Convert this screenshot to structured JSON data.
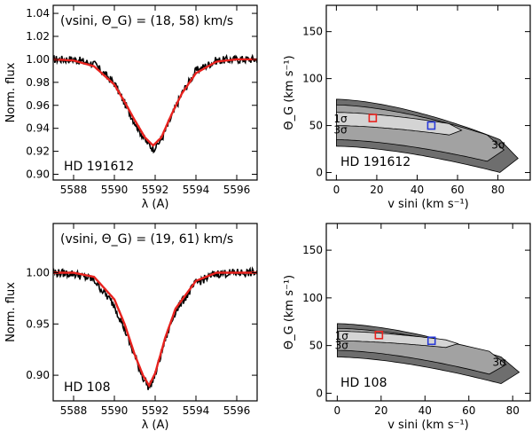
{
  "chart_data": [
    {
      "type": "line",
      "panel": "spectrum",
      "star_label": "HD 191612",
      "annotation": "(vsini, Θ_G) = (18, 58) km/s",
      "xlabel": "λ (A)",
      "ylabel": "Norm. flux",
      "xlim": [
        5587.0,
        5597.0
      ],
      "ylim": [
        0.895,
        1.047
      ],
      "xticks": [
        5588,
        5590,
        5592,
        5594,
        5596
      ],
      "xtick_labels": [
        "5588",
        "5590",
        "5592",
        "5594",
        "5596"
      ],
      "yticks": [
        0.9,
        0.92,
        0.94,
        0.96,
        0.98,
        1.0,
        1.02,
        1.04
      ],
      "ytick_labels": [
        "0.90",
        "0.92",
        "0.94",
        "0.96",
        "0.98",
        "1.00",
        "1.02",
        "1.04"
      ],
      "line_center": 5591.9,
      "line_depth": 0.078,
      "observed_sigma": 1.0,
      "model_sigma": 1.05,
      "series": [
        {
          "color": "#000000",
          "role": "observed",
          "x": [
            5587.0,
            5588.0,
            5589.0,
            5590.0,
            5590.5,
            5591.0,
            5591.5,
            5591.9,
            5592.3,
            5592.8,
            5593.3,
            5594.0,
            5595.0,
            5596.0,
            5597.0
          ],
          "values": [
            1.0,
            1.0,
            0.996,
            0.979,
            0.962,
            0.945,
            0.93,
            0.922,
            0.93,
            0.95,
            0.97,
            0.99,
            0.999,
            1.0,
            1.0
          ]
        },
        {
          "color": "#e8221e",
          "role": "model",
          "x": [
            5587.0,
            5588.0,
            5589.0,
            5590.0,
            5590.5,
            5591.0,
            5591.5,
            5591.9,
            5592.3,
            5592.8,
            5593.3,
            5594.0,
            5595.0,
            5596.0,
            5597.0
          ],
          "values": [
            1.0,
            0.999,
            0.994,
            0.978,
            0.963,
            0.947,
            0.932,
            0.925,
            0.932,
            0.952,
            0.97,
            0.988,
            0.998,
            1.0,
            1.0
          ]
        }
      ]
    },
    {
      "type": "contour",
      "panel": "chi2-map",
      "star_label": "HD 191612",
      "xlabel": "v sini (km s⁻¹)",
      "ylabel": "Θ_G (km s⁻¹)",
      "xlim": [
        -5,
        96
      ],
      "ylim": [
        -8,
        178
      ],
      "xticks": [
        0,
        20,
        40,
        60,
        80
      ],
      "xtick_labels": [
        "0",
        "20",
        "40",
        "60",
        "80"
      ],
      "yticks": [
        0,
        50,
        100,
        150
      ],
      "ytick_labels": [
        "0",
        "50",
        "100",
        "150"
      ],
      "contour_labels": [
        "1σ",
        "3σ",
        "3σ"
      ],
      "contour_colors": {
        "outer": "#6e6e6e",
        "middle": "#a2a2a2",
        "inner": "#d4d4d4"
      },
      "contour_levels": [
        {
          "level": "outer",
          "upper_theta0": 78,
          "upper_theta_end": 35,
          "lower_theta0": 28,
          "lower_theta_end": 0,
          "vmax": 90,
          "tip_theta": 15
        },
        {
          "level": "middle",
          "upper_theta0": 72,
          "upper_theta_end": 40,
          "lower_theta0": 35,
          "lower_theta_end": 12,
          "vmax": 83,
          "tip_theta": 24
        },
        {
          "level": "inner",
          "upper_theta0": 64,
          "upper_theta_end": 52,
          "lower_theta0": 50,
          "lower_theta_end": 40,
          "vmax": 62,
          "tip_theta": 45
        }
      ],
      "markers": [
        {
          "color": "#e8221e",
          "x": 18,
          "y": 58
        },
        {
          "color": "#2a3bd8",
          "x": 47,
          "y": 50
        }
      ]
    },
    {
      "type": "line",
      "panel": "spectrum",
      "star_label": "HD 108",
      "annotation": "(vsini, Θ_G) = (19, 61) km/s",
      "xlabel": "λ (A)",
      "ylabel": "Norm. flux",
      "xlim": [
        5587.0,
        5597.0
      ],
      "ylim": [
        0.875,
        1.048
      ],
      "xticks": [
        5588,
        5590,
        5592,
        5594,
        5596
      ],
      "xtick_labels": [
        "5588",
        "5590",
        "5592",
        "5594",
        "5596"
      ],
      "yticks": [
        0.9,
        0.95,
        1.0
      ],
      "ytick_labels": [
        "0.90",
        "0.95",
        "1.00"
      ],
      "line_center": 5591.7,
      "line_depth": 0.112,
      "observed_sigma": 0.95,
      "model_sigma": 0.9,
      "series": [
        {
          "color": "#000000",
          "role": "observed",
          "x": [
            5587.0,
            5588.0,
            5589.0,
            5590.0,
            5590.5,
            5591.0,
            5591.4,
            5591.7,
            5592.0,
            5592.5,
            5593.0,
            5594.0,
            5595.0,
            5596.0,
            5597.0
          ],
          "values": [
            1.0,
            0.999,
            0.993,
            0.968,
            0.945,
            0.918,
            0.898,
            0.888,
            0.9,
            0.935,
            0.963,
            0.99,
            0.999,
            1.0,
            1.0
          ]
        },
        {
          "color": "#e8221e",
          "role": "model",
          "x": [
            5587.0,
            5588.0,
            5589.0,
            5590.0,
            5590.5,
            5591.0,
            5591.4,
            5591.7,
            5592.0,
            5592.5,
            5593.0,
            5594.0,
            5595.0,
            5596.0,
            5597.0
          ],
          "values": [
            1.0,
            1.0,
            0.996,
            0.974,
            0.95,
            0.92,
            0.9,
            0.89,
            0.902,
            0.937,
            0.965,
            0.992,
            1.0,
            1.0,
            1.0
          ]
        }
      ]
    },
    {
      "type": "contour",
      "panel": "chi2-map",
      "star_label": "HD 108",
      "xlabel": "v sini (km s⁻¹)",
      "ylabel": "Θ_G (km s⁻¹)",
      "xlim": [
        -5,
        88
      ],
      "ylim": [
        -8,
        178
      ],
      "xticks": [
        0,
        20,
        40,
        60,
        80
      ],
      "xtick_labels": [
        "0",
        "20",
        "40",
        "60",
        "80"
      ],
      "yticks": [
        0,
        50,
        100,
        150
      ],
      "ytick_labels": [
        "0",
        "50",
        "100",
        "150"
      ],
      "contour_labels": [
        "1σ",
        "3σ",
        "3σ"
      ],
      "contour_colors": {
        "outer": "#6e6e6e",
        "middle": "#a2a2a2",
        "inner": "#d4d4d4"
      },
      "contour_levels": [
        {
          "level": "outer",
          "upper_theta0": 73,
          "upper_theta_end": 38,
          "lower_theta0": 38,
          "lower_theta_end": 10,
          "vmax": 83,
          "tip_theta": 22
        },
        {
          "level": "middle",
          "upper_theta0": 68,
          "upper_theta_end": 44,
          "lower_theta0": 45,
          "lower_theta_end": 20,
          "vmax": 77,
          "tip_theta": 30
        },
        {
          "level": "inner",
          "upper_theta0": 65,
          "upper_theta_end": 56,
          "lower_theta0": 55,
          "lower_theta_end": 48,
          "vmax": 55,
          "tip_theta": 52
        }
      ],
      "markers": [
        {
          "color": "#e8221e",
          "x": 19,
          "y": 61
        },
        {
          "color": "#2a3bd8",
          "x": 43,
          "y": 55
        }
      ]
    }
  ]
}
